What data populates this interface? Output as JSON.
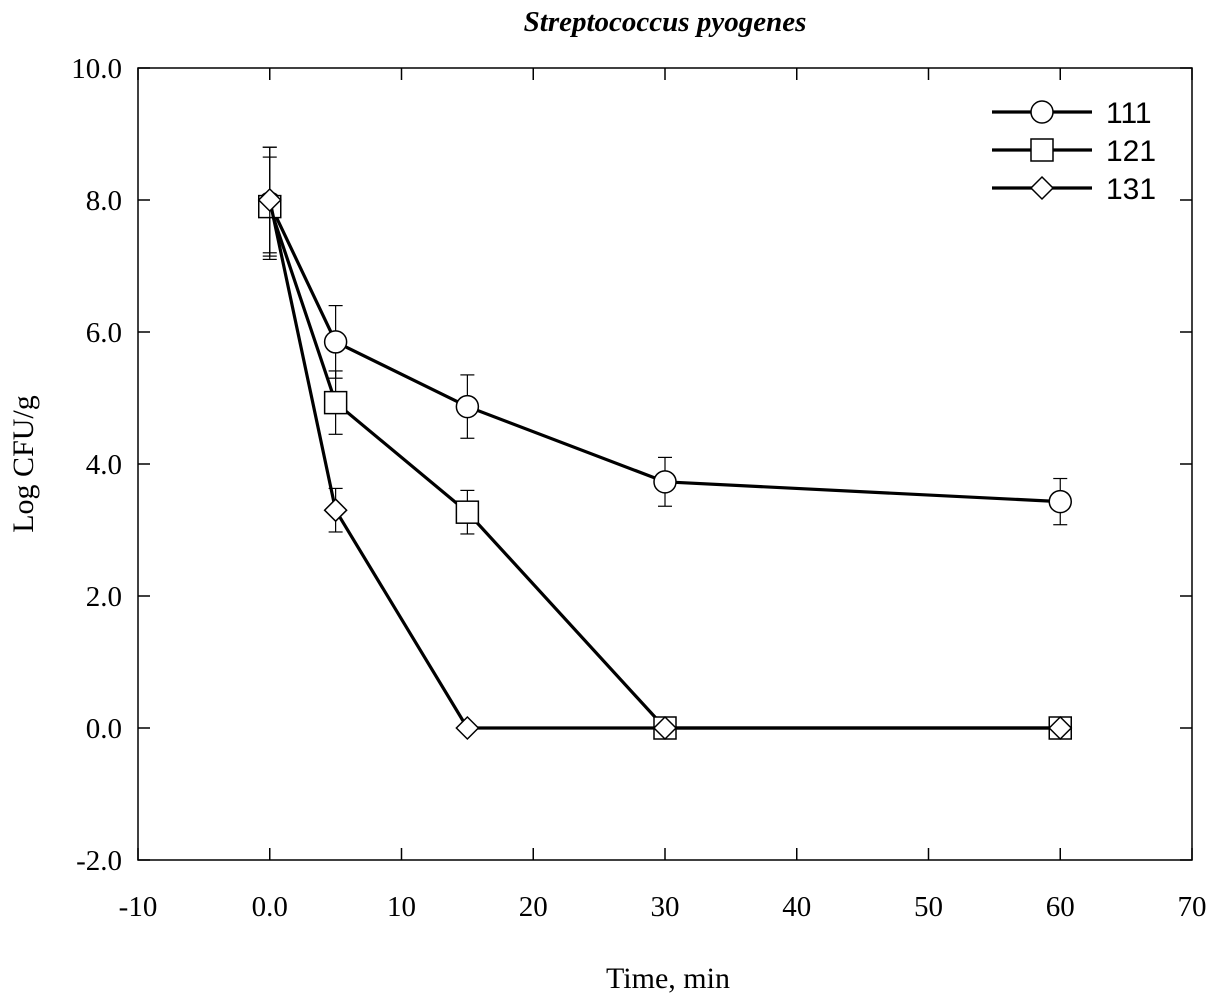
{
  "chart_data": {
    "type": "line",
    "title": "Streptococcus pyogenes",
    "xlabel": "Time, min",
    "ylabel": "Log CFU/g",
    "xlim": [
      -10,
      70
    ],
    "ylim": [
      -2.0,
      10.0
    ],
    "xticks": [
      -10,
      0,
      10,
      20,
      30,
      40,
      50,
      60,
      70
    ],
    "xtick_labels": [
      "-10",
      "0.0",
      "10",
      "20",
      "30",
      "40",
      "50",
      "60",
      "70"
    ],
    "yticks": [
      -2,
      0,
      2,
      4,
      6,
      8,
      10
    ],
    "ytick_labels": [
      "-2.0",
      "0.0",
      "2.0",
      "4.0",
      "6.0",
      "8.0",
      "10.0"
    ],
    "grid": false,
    "legend_position": "top-right",
    "series": [
      {
        "name": "111",
        "marker": "circle",
        "x": [
          0,
          5,
          15,
          30,
          60
        ],
        "y": [
          7.95,
          5.85,
          4.87,
          3.73,
          3.43
        ],
        "error": [
          0.85,
          0.55,
          0.48,
          0.37,
          0.35
        ]
      },
      {
        "name": "121",
        "marker": "square",
        "x": [
          0,
          5,
          15,
          30,
          60
        ],
        "y": [
          7.9,
          4.93,
          3.27,
          0.0,
          0.0
        ],
        "error": [
          0.75,
          0.48,
          0.33,
          0.0,
          0.0
        ]
      },
      {
        "name": "131",
        "marker": "diamond",
        "x": [
          0,
          5,
          15,
          30,
          60
        ],
        "y": [
          8.0,
          3.3,
          0.0,
          0.0,
          0.0
        ],
        "error": [
          0.8,
          0.33,
          0.0,
          0.0,
          0.0
        ]
      }
    ]
  }
}
